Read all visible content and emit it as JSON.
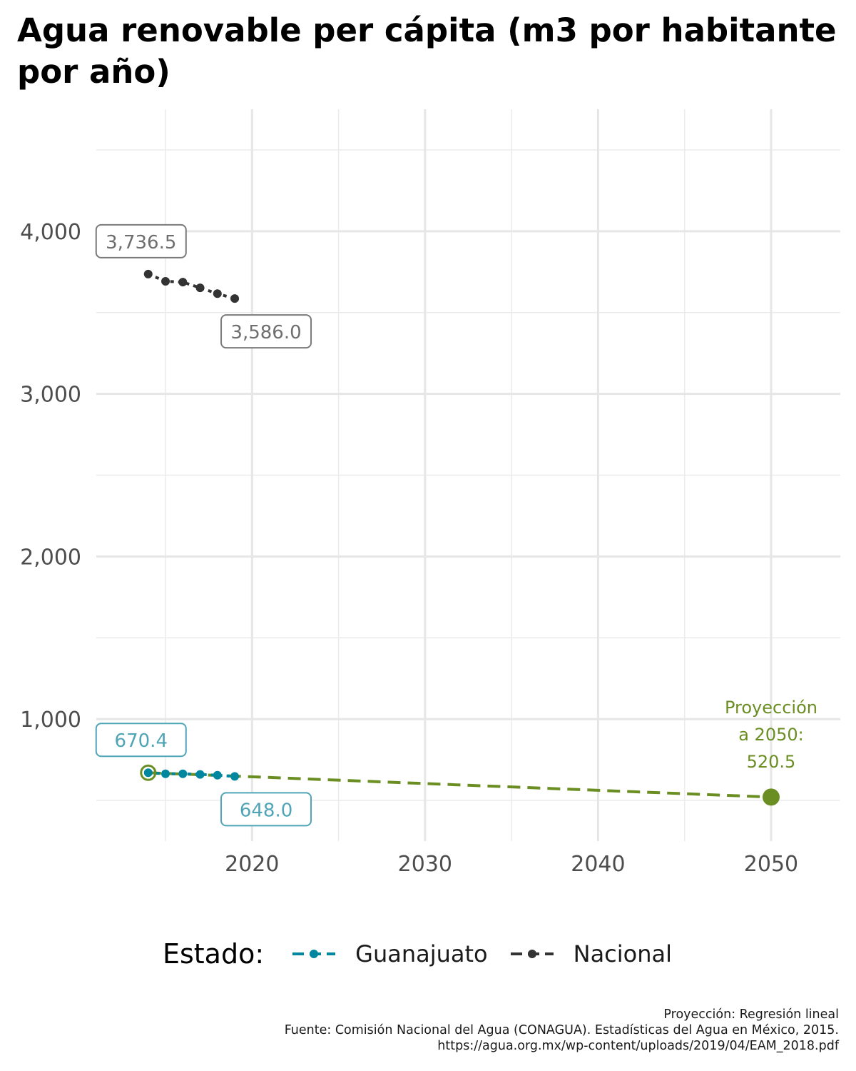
{
  "chart_data": {
    "type": "line",
    "title": "Agua renovable per cápita (m3 por habitante por año)",
    "xlabel": "",
    "ylabel": "",
    "xlim": [
      2011,
      2054
    ],
    "ylim": [
      250,
      4750
    ],
    "x_ticks": [
      2020,
      2030,
      2040,
      2050
    ],
    "y_ticks": [
      1000,
      2000,
      3000,
      4000
    ],
    "x_tick_labels": [
      "2020",
      "2030",
      "2040",
      "2050"
    ],
    "y_tick_labels": [
      "1,000",
      "2,000",
      "3,000",
      "4,000"
    ],
    "grid": true,
    "legend_title": "Estado:",
    "legend_position": "bottom",
    "series": [
      {
        "name": "Guanajuato",
        "color": "#00869E",
        "x": [
          2014,
          2015,
          2016,
          2017,
          2018,
          2019
        ],
        "y": [
          670.4,
          664,
          664,
          660,
          655,
          648.0
        ],
        "labels": [
          {
            "x": 2014,
            "text": "670.4"
          },
          {
            "x": 2019,
            "text": "648.0"
          }
        ]
      },
      {
        "name": "Nacional",
        "color": "#333333",
        "x": [
          2014,
          2015,
          2016,
          2017,
          2018,
          2019
        ],
        "y": [
          3736.5,
          3692,
          3687,
          3652,
          3616,
          3586.0
        ],
        "labels": [
          {
            "x": 2014,
            "text": "3,736.5"
          },
          {
            "x": 2019,
            "text": "3,586.0"
          }
        ]
      }
    ],
    "projection": {
      "color": "#6B8E23",
      "x": [
        2014,
        2050
      ],
      "y": [
        670.4,
        520.5
      ],
      "annotation_lines": [
        "Proyección",
        "a 2050:",
        "520.5"
      ]
    }
  },
  "caption": {
    "line1": "Proyección: Regresión lineal",
    "line2": "Fuente: Comisión Nacional del Agua (CONAGUA). Estadísticas del Agua en México, 2015.",
    "line3": "https://agua.org.mx/wp-content/uploads/2019/04/EAM_2018.pdf"
  }
}
